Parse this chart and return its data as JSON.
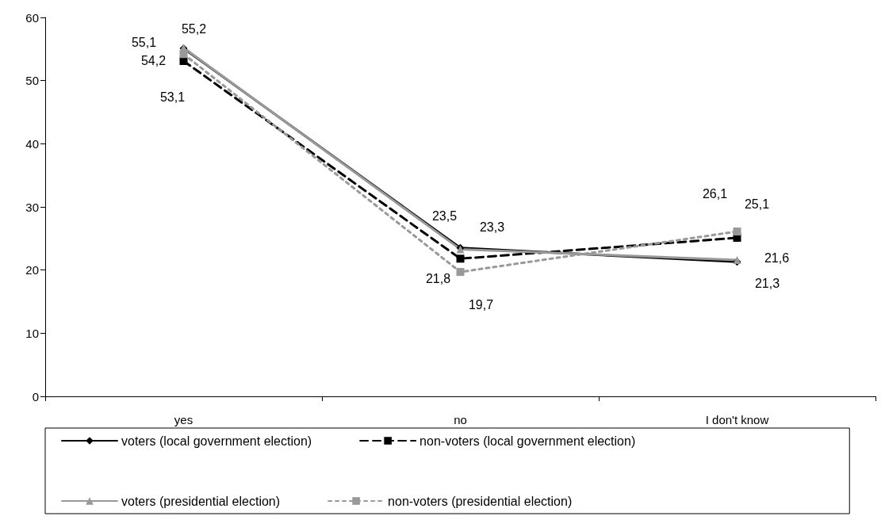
{
  "chart_data": {
    "type": "line",
    "categories": [
      "yes",
      "no",
      "I don't know"
    ],
    "ylim": [
      0,
      60
    ],
    "yticks": [
      0,
      10,
      20,
      30,
      40,
      50,
      60
    ],
    "grid": false,
    "legend": "bottom",
    "series": [
      {
        "name": "voters (local government election)",
        "color": "#000000",
        "marker": "diamond",
        "line_style": "solid",
        "values": [
          55.1,
          23.5,
          21.3
        ],
        "value_labels": [
          "55,1",
          "23,5",
          "21,3"
        ]
      },
      {
        "name": "non-voters (local government election)",
        "color": "#000000",
        "marker": "square",
        "line_style": "dashed",
        "values": [
          53.1,
          21.8,
          25.1
        ],
        "value_labels": [
          "53,1",
          "21,8",
          "25,1"
        ]
      },
      {
        "name": "voters (presidential election)",
        "color": "#999999",
        "marker": "triangle",
        "line_style": "solid",
        "values": [
          55.2,
          23.3,
          21.6
        ],
        "value_labels": [
          "55,2",
          "23,3",
          "21,6"
        ]
      },
      {
        "name": "non-voters (presidential election)",
        "color": "#999999",
        "marker": "square",
        "line_style": "dotted",
        "values": [
          54.2,
          19.7,
          26.1
        ],
        "value_labels": [
          "54,2",
          "19,7",
          "26,1"
        ]
      }
    ]
  }
}
